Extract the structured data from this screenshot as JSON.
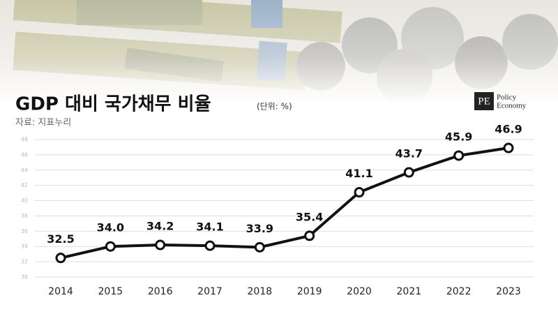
{
  "chart_data": {
    "type": "line",
    "title": "GDP 대비 국가채무 비율",
    "unit": "(단위: %)",
    "source": "자료: 지표누리",
    "categories": [
      "2014",
      "2015",
      "2016",
      "2017",
      "2018",
      "2019",
      "2020",
      "2021",
      "2022",
      "2023"
    ],
    "values": [
      32.5,
      34.0,
      34.2,
      34.1,
      33.9,
      35.4,
      41.1,
      43.7,
      45.9,
      46.9
    ],
    "value_labels": [
      "32.5",
      "34.0",
      "34.2",
      "34.1",
      "33.9",
      "35.4",
      "41.1",
      "43.7",
      "45.9",
      "46.9"
    ],
    "color": "#111111",
    "ylim": [
      30,
      48
    ],
    "yticks": [
      30,
      32,
      34,
      36,
      38,
      40,
      42,
      44,
      46,
      48
    ],
    "grid": true
  },
  "logo": {
    "mark": "PE",
    "line1": "Policy",
    "line2": "Economy"
  }
}
